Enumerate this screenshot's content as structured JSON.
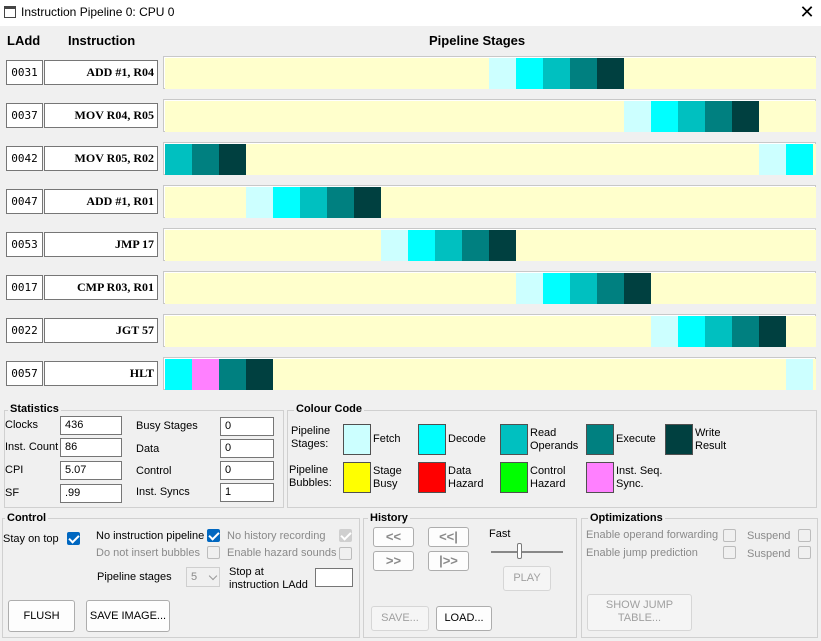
{
  "window": {
    "title": "Instruction Pipeline 0: CPU 0",
    "close_glyph": "✕"
  },
  "headers": {
    "ladd": "LAdd",
    "instruction": "Instruction",
    "stages": "Pipeline Stages"
  },
  "colors": {
    "fetch": "#ccffff",
    "decode": "#00ffff",
    "read_operands": "#00c0c0",
    "execute": "#008080",
    "write_result": "#004040",
    "lane": "#ffffcc",
    "stage_busy": "#ffff00",
    "data_hazard": "#ff0000",
    "control_hazard": "#00ff00",
    "inst_seq_sync": "#ff80ff"
  },
  "pipeline": {
    "rows": [
      {
        "ladd": "0031",
        "instruction": "ADD #1, R04",
        "cells": [
          [
            12,
            "fetch"
          ],
          [
            13,
            "decode"
          ],
          [
            14,
            "read_operands"
          ],
          [
            15,
            "execute"
          ],
          [
            16,
            "write_result"
          ]
        ]
      },
      {
        "ladd": "0037",
        "instruction": "MOV R04, R05",
        "cells": [
          [
            17,
            "fetch"
          ],
          [
            18,
            "decode"
          ],
          [
            19,
            "read_operands"
          ],
          [
            20,
            "execute"
          ],
          [
            21,
            "write_result"
          ]
        ]
      },
      {
        "ladd": "0042",
        "instruction": "MOV R05, R02",
        "cells": [
          [
            0,
            "read_operands"
          ],
          [
            1,
            "execute"
          ],
          [
            2,
            "write_result"
          ],
          [
            22,
            "fetch"
          ],
          [
            23,
            "decode"
          ]
        ]
      },
      {
        "ladd": "0047",
        "instruction": "ADD #1, R01",
        "cells": [
          [
            3,
            "fetch"
          ],
          [
            4,
            "decode"
          ],
          [
            5,
            "read_operands"
          ],
          [
            6,
            "execute"
          ],
          [
            7,
            "write_result"
          ]
        ]
      },
      {
        "ladd": "0053",
        "instruction": "JMP 17",
        "cells": [
          [
            8,
            "fetch"
          ],
          [
            9,
            "decode"
          ],
          [
            10,
            "read_operands"
          ],
          [
            11,
            "execute"
          ],
          [
            12,
            "write_result"
          ]
        ]
      },
      {
        "ladd": "0017",
        "instruction": "CMP R03, R01",
        "cells": [
          [
            13,
            "fetch"
          ],
          [
            14,
            "decode"
          ],
          [
            15,
            "read_operands"
          ],
          [
            16,
            "execute"
          ],
          [
            17,
            "write_result"
          ]
        ]
      },
      {
        "ladd": "0022",
        "instruction": "JGT 57",
        "cells": [
          [
            18,
            "fetch"
          ],
          [
            19,
            "decode"
          ],
          [
            20,
            "read_operands"
          ],
          [
            21,
            "execute"
          ],
          [
            22,
            "write_result"
          ]
        ]
      },
      {
        "ladd": "0057",
        "instruction": "HLT",
        "cells": [
          [
            0,
            "decode"
          ],
          [
            1,
            "inst_seq_sync"
          ],
          [
            2,
            "execute"
          ],
          [
            3,
            "write_result"
          ],
          [
            23,
            "fetch"
          ]
        ]
      }
    ]
  },
  "statistics": {
    "title": "Statistics",
    "left": [
      {
        "label": "Clocks",
        "value": "436"
      },
      {
        "label": "Inst. Count",
        "value": "86"
      },
      {
        "label": "CPI",
        "value": "5.07"
      },
      {
        "label": "SF",
        "value": ".99"
      }
    ],
    "right": [
      {
        "label": "Busy Stages",
        "value": "0"
      },
      {
        "label": "Data",
        "value": "0"
      },
      {
        "label": "Control",
        "value": "0"
      },
      {
        "label": "Inst. Syncs",
        "value": "1"
      }
    ]
  },
  "colour_code": {
    "title": "Colour Code",
    "stages_label": "Pipeline\nStages:",
    "bubbles_label": "Pipeline\nBubbles:",
    "stages": [
      {
        "key": "fetch",
        "label": "Fetch"
      },
      {
        "key": "decode",
        "label": "Decode"
      },
      {
        "key": "read_operands",
        "label": "Read\nOperands"
      },
      {
        "key": "execute",
        "label": "Execute"
      },
      {
        "key": "write_result",
        "label": "Write\nResult"
      }
    ],
    "bubbles": [
      {
        "key": "stage_busy",
        "label": "Stage\nBusy"
      },
      {
        "key": "data_hazard",
        "label": "Data\nHazard"
      },
      {
        "key": "control_hazard",
        "label": "Control\nHazard"
      },
      {
        "key": "inst_seq_sync",
        "label": "Inst. Seq.\nSync."
      }
    ]
  },
  "control": {
    "title": "Control",
    "stay_on_top": "Stay on top",
    "no_pipeline": "No instruction pipeline",
    "no_bubbles": "Do not insert bubbles",
    "no_history": "No history recording",
    "hazard_sounds": "Enable hazard sounds",
    "pipeline_stages_label": "Pipeline stages",
    "pipeline_stages_value": "5",
    "stop_at_label": "Stop at\ninstruction LAdd",
    "flush": "FLUSH",
    "save_image": "SAVE IMAGE..."
  },
  "history": {
    "title": "History",
    "back": "<<",
    "start": "<<|",
    "forward": ">>",
    "end": "|>>",
    "fast": "Fast",
    "play": "PLAY",
    "save": "SAVE...",
    "load": "LOAD..."
  },
  "optimizations": {
    "title": "Optimizations",
    "operand_forwarding": "Enable operand forwarding",
    "jump_prediction": "Enable jump prediction",
    "suspend": "Suspend",
    "show_jump_table": "SHOW JUMP\nTABLE..."
  }
}
